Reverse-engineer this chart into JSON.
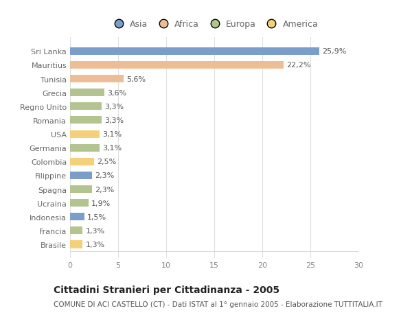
{
  "categories": [
    "Sri Lanka",
    "Mauritius",
    "Tunisia",
    "Grecia",
    "Regno Unito",
    "Romania",
    "USA",
    "Germania",
    "Colombia",
    "Filippine",
    "Spagna",
    "Ucraina",
    "Indonesia",
    "Francia",
    "Brasile"
  ],
  "values": [
    25.9,
    22.2,
    5.6,
    3.6,
    3.3,
    3.3,
    3.1,
    3.1,
    2.5,
    2.3,
    2.3,
    1.9,
    1.5,
    1.3,
    1.3
  ],
  "labels": [
    "25,9%",
    "22,2%",
    "5,6%",
    "3,6%",
    "3,3%",
    "3,3%",
    "3,1%",
    "3,1%",
    "2,5%",
    "2,3%",
    "2,3%",
    "1,9%",
    "1,5%",
    "1,3%",
    "1,3%"
  ],
  "colors": [
    "#7b9dc9",
    "#edbe95",
    "#edbe95",
    "#b3c490",
    "#b3c490",
    "#b3c490",
    "#f5d07a",
    "#b3c490",
    "#f5d07a",
    "#7b9dc9",
    "#b3c490",
    "#b3c490",
    "#7b9dc9",
    "#b3c490",
    "#f5d07a"
  ],
  "legend_labels": [
    "Asia",
    "Africa",
    "Europa",
    "America"
  ],
  "legend_colors": [
    "#7b9dc9",
    "#edbe95",
    "#b3c490",
    "#f5d07a"
  ],
  "xlim": [
    0,
    30
  ],
  "xticks": [
    0,
    5,
    10,
    15,
    20,
    25,
    30
  ],
  "title": "Cittadini Stranieri per Cittadinanza - 2005",
  "subtitle": "COMUNE DI ACI CASTELLO (CT) - Dati ISTAT al 1° gennaio 2005 - Elaborazione TUTTITALIA.IT",
  "bg_color": "#ffffff",
  "grid_color": "#e0e0e0",
  "bar_height": 0.55,
  "label_fontsize": 8,
  "tick_fontsize": 8,
  "title_fontsize": 10,
  "subtitle_fontsize": 7.5
}
